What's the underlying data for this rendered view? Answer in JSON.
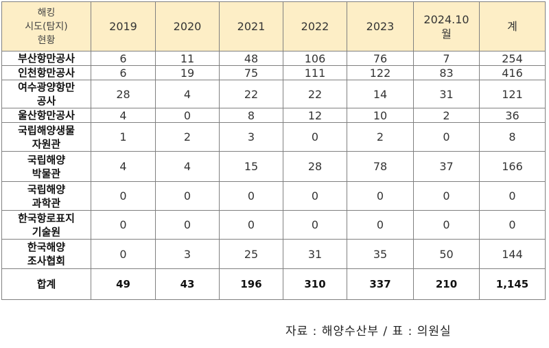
{
  "table": {
    "corner_header": "해킹\n시도(탐지)\n현황",
    "columns": [
      "2019",
      "2020",
      "2021",
      "2022",
      "2023",
      "2024.10\n월",
      "계"
    ],
    "rows": [
      {
        "name": "부산항만공사",
        "values": [
          "6",
          "11",
          "48",
          "106",
          "76",
          "7",
          "254"
        ]
      },
      {
        "name": "인천항만공사",
        "values": [
          "6",
          "19",
          "75",
          "111",
          "122",
          "83",
          "416"
        ]
      },
      {
        "name": "여수광양항만\n공사",
        "values": [
          "28",
          "4",
          "22",
          "22",
          "14",
          "31",
          "121"
        ]
      },
      {
        "name": "울산항만공사",
        "values": [
          "4",
          "0",
          "8",
          "12",
          "10",
          "2",
          "36"
        ]
      },
      {
        "name": "국립해양생물\n자원관",
        "values": [
          "1",
          "2",
          "3",
          "0",
          "2",
          "0",
          "8"
        ]
      },
      {
        "name": "국립해양\n박물관",
        "values": [
          "4",
          "4",
          "15",
          "28",
          "78",
          "37",
          "166"
        ]
      },
      {
        "name": "국립해양\n과학관",
        "values": [
          "0",
          "0",
          "0",
          "0",
          "0",
          "0",
          "0"
        ]
      },
      {
        "name": "한국항로표지\n기술원",
        "values": [
          "0",
          "0",
          "0",
          "0",
          "0",
          "0",
          "0"
        ]
      },
      {
        "name": "한국해양\n조사협회",
        "values": [
          "0",
          "3",
          "25",
          "31",
          "35",
          "50",
          "144"
        ]
      }
    ],
    "total": {
      "name": "합계",
      "values": [
        "49",
        "43",
        "196",
        "310",
        "337",
        "210",
        "1,145"
      ]
    }
  },
  "source": "자료 : 해양수산부 / 표 : 의원실"
}
